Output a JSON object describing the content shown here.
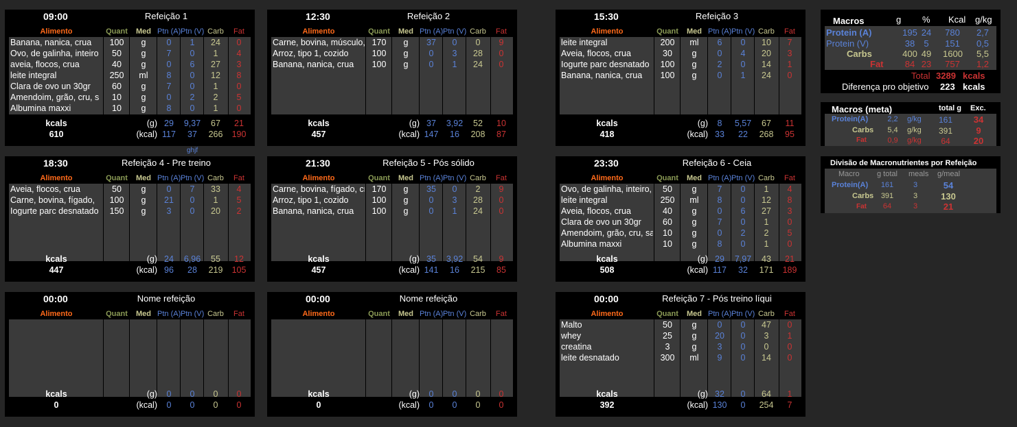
{
  "meal_headers": {
    "alimento": "Alimento",
    "quant": "Quant",
    "med": "Med",
    "ptn_a": "Ptn (A)",
    "ptn_v": "Ptn (V)",
    "carb": "Carb",
    "fat": "Fat",
    "kcals": "kcals",
    "g_unit": "(g)",
    "kcal_unit": "(kcal)"
  },
  "meals": [
    {
      "time": "09:00",
      "name": "Refeição 1",
      "items": [
        {
          "food": "Banana, nanica, crua",
          "qty": "100",
          "unit": "g",
          "pa": "0",
          "pv": "1",
          "carb": "24",
          "fat": "0"
        },
        {
          "food": "Ovo, de galinha, inteiro",
          "qty": "50",
          "unit": "g",
          "pa": "7",
          "pv": "0",
          "carb": "1",
          "fat": "4"
        },
        {
          "food": "aveia, flocos, crua",
          "qty": "40",
          "unit": "g",
          "pa": "0",
          "pv": "6",
          "carb": "27",
          "fat": "3"
        },
        {
          "food": "leite integral",
          "qty": "250",
          "unit": "ml",
          "pa": "8",
          "pv": "0",
          "carb": "12",
          "fat": "8"
        },
        {
          "food": "Clara de ovo un 30gr",
          "qty": "60",
          "unit": "g",
          "pa": "7",
          "pv": "0",
          "carb": "1",
          "fat": "0"
        },
        {
          "food": "Amendoim, grão, cru, s",
          "qty": "10",
          "unit": "g",
          "pa": "0",
          "pv": "2",
          "carb": "2",
          "fat": "5"
        },
        {
          "food": "Albumina maxxi",
          "qty": "10",
          "unit": "g",
          "pa": "8",
          "pv": "0",
          "carb": "1",
          "fat": "0"
        }
      ],
      "kcal_total": "610",
      "g": {
        "pa": "29",
        "pv": "9,37",
        "carb": "67",
        "fat": "21"
      },
      "kcal": {
        "pa": "117",
        "pv": "37",
        "carb": "266",
        "fat": "190"
      }
    },
    {
      "time": "12:30",
      "name": "Refeição 2",
      "items": [
        {
          "food": "Carne, bovina, músculo, sem",
          "qty": "170",
          "unit": "g",
          "pa": "37",
          "pv": "0",
          "carb": "0",
          "fat": "9"
        },
        {
          "food": "Arroz, tipo 1, cozido",
          "qty": "100",
          "unit": "g",
          "pa": "0",
          "pv": "3",
          "carb": "28",
          "fat": "0"
        },
        {
          "food": "Banana, nanica, crua",
          "qty": "100",
          "unit": "g",
          "pa": "0",
          "pv": "1",
          "carb": "24",
          "fat": "0"
        }
      ],
      "kcal_total": "457",
      "g": {
        "pa": "37",
        "pv": "3,92",
        "carb": "52",
        "fat": "10"
      },
      "kcal": {
        "pa": "147",
        "pv": "16",
        "carb": "208",
        "fat": "87"
      }
    },
    {
      "time": "15:30",
      "name": "Refeição 3",
      "items": [
        {
          "food": "leite integral",
          "qty": "200",
          "unit": "ml",
          "pa": "6",
          "pv": "0",
          "carb": "10",
          "fat": "7"
        },
        {
          "food": "Aveia, flocos, crua",
          "qty": "30",
          "unit": "g",
          "pa": "0",
          "pv": "4",
          "carb": "20",
          "fat": "3"
        },
        {
          "food": "Iogurte parc desnatado",
          "qty": "100",
          "unit": "g",
          "pa": "2",
          "pv": "0",
          "carb": "14",
          "fat": "1"
        },
        {
          "food": "Banana, nanica, crua",
          "qty": "100",
          "unit": "g",
          "pa": "0",
          "pv": "1",
          "carb": "24",
          "fat": "0"
        }
      ],
      "kcal_total": "418",
      "g": {
        "pa": "8",
        "pv": "5,57",
        "carb": "67",
        "fat": "11"
      },
      "kcal": {
        "pa": "33",
        "pv": "22",
        "carb": "268",
        "fat": "95"
      }
    },
    {
      "time": "18:30",
      "name": "Refeição 4 - Pre treino",
      "items": [
        {
          "food": "Aveia, flocos, crua",
          "qty": "50",
          "unit": "g",
          "pa": "0",
          "pv": "7",
          "carb": "33",
          "fat": "4"
        },
        {
          "food": "Carne, bovina, fígado,",
          "qty": "100",
          "unit": "g",
          "pa": "21",
          "pv": "0",
          "carb": "1",
          "fat": "5"
        },
        {
          "food": "Iogurte parc desnatado",
          "qty": "150",
          "unit": "g",
          "pa": "3",
          "pv": "0",
          "carb": "20",
          "fat": "2"
        }
      ],
      "kcal_total": "447",
      "g": {
        "pa": "24",
        "pv": "6,96",
        "carb": "55",
        "fat": "12"
      },
      "kcal": {
        "pa": "96",
        "pv": "28",
        "carb": "219",
        "fat": "105"
      }
    },
    {
      "time": "21:30",
      "name": "Refeição 5 - Pós sólido",
      "items": [
        {
          "food": "Carne, bovina, fígado, cru",
          "qty": "170",
          "unit": "g",
          "pa": "35",
          "pv": "0",
          "carb": "2",
          "fat": "9"
        },
        {
          "food": "Arroz, tipo 1, cozido",
          "qty": "100",
          "unit": "g",
          "pa": "0",
          "pv": "3",
          "carb": "28",
          "fat": "0"
        },
        {
          "food": "Banana, nanica, crua",
          "qty": "100",
          "unit": "g",
          "pa": "0",
          "pv": "1",
          "carb": "24",
          "fat": "0"
        }
      ],
      "kcal_total": "457",
      "g": {
        "pa": "35",
        "pv": "3,92",
        "carb": "54",
        "fat": "9"
      },
      "kcal": {
        "pa": "141",
        "pv": "16",
        "carb": "215",
        "fat": "85"
      }
    },
    {
      "time": "23:30",
      "name": "Refeição 6 - Ceia",
      "items": [
        {
          "food": "Ovo, de galinha, inteiro,",
          "qty": "50",
          "unit": "g",
          "pa": "7",
          "pv": "0",
          "carb": "1",
          "fat": "4"
        },
        {
          "food": "leite integral",
          "qty": "250",
          "unit": "ml",
          "pa": "8",
          "pv": "0",
          "carb": "12",
          "fat": "8"
        },
        {
          "food": "Aveia, flocos, crua",
          "qty": "40",
          "unit": "g",
          "pa": "0",
          "pv": "6",
          "carb": "27",
          "fat": "3"
        },
        {
          "food": "Clara de ovo un 30gr",
          "qty": "60",
          "unit": "g",
          "pa": "7",
          "pv": "0",
          "carb": "1",
          "fat": "0"
        },
        {
          "food": "Amendoim, grão, cru, sa",
          "qty": "10",
          "unit": "g",
          "pa": "0",
          "pv": "2",
          "carb": "2",
          "fat": "5"
        },
        {
          "food": "Albumina maxxi",
          "qty": "10",
          "unit": "g",
          "pa": "8",
          "pv": "0",
          "carb": "1",
          "fat": "0"
        }
      ],
      "kcal_total": "508",
      "g": {
        "pa": "29",
        "pv": "7,97",
        "carb": "43",
        "fat": "21"
      },
      "kcal": {
        "pa": "117",
        "pv": "32",
        "carb": "171",
        "fat": "189"
      }
    },
    {
      "time": "00:00",
      "name": "Nome refeição",
      "items": [],
      "kcal_total": "0",
      "g": {
        "pa": "0",
        "pv": "0",
        "carb": "0",
        "fat": "0"
      },
      "kcal": {
        "pa": "0",
        "pv": "0",
        "carb": "0",
        "fat": "0"
      }
    },
    {
      "time": "00:00",
      "name": "Nome refeição",
      "items": [],
      "kcal_total": "0",
      "g": {
        "pa": "0",
        "pv": "0",
        "carb": "0",
        "fat": "0"
      },
      "kcal": {
        "pa": "0",
        "pv": "0",
        "carb": "0",
        "fat": "0"
      }
    },
    {
      "time": "00:00",
      "name": "Refeição 7 - Pós treino líqui",
      "items": [
        {
          "food": "Malto",
          "qty": "50",
          "unit": "g",
          "pa": "0",
          "pv": "0",
          "carb": "47",
          "fat": "0"
        },
        {
          "food": "whey",
          "qty": "25",
          "unit": "g",
          "pa": "20",
          "pv": "0",
          "carb": "3",
          "fat": "1"
        },
        {
          "food": "creatina",
          "qty": "3",
          "unit": "g",
          "pa": "3",
          "pv": "0",
          "carb": "0",
          "fat": "0"
        },
        {
          "food": "leite desnatado",
          "qty": "300",
          "unit": "ml",
          "pa": "9",
          "pv": "0",
          "carb": "14",
          "fat": "0"
        }
      ],
      "kcal_total": "392",
      "g": {
        "pa": "32",
        "pv": "0",
        "carb": "64",
        "fat": "1"
      },
      "kcal": {
        "pa": "130",
        "pv": "0",
        "carb": "254",
        "fat": "7"
      }
    }
  ],
  "stray_text": "ghjf",
  "macros": {
    "title": "Macros",
    "h_g": "g",
    "h_pct": "%",
    "h_kcal": "Kcal",
    "h_gkg": "g/kg",
    "rows": [
      {
        "label": "Protein (A)",
        "g": "195",
        "pct": "24",
        "kcal": "780",
        "gkg": "2,7"
      },
      {
        "label": "Protein (V)",
        "g": "38",
        "pct": "5",
        "kcal": "151",
        "gkg": "0,5"
      },
      {
        "label": "Carbs",
        "g": "400",
        "pct": "49",
        "kcal": "1600",
        "gkg": "5,5"
      },
      {
        "label": "Fat",
        "g": "84",
        "pct": "23",
        "kcal": "757",
        "gkg": "1,2"
      }
    ],
    "total_label": "Total",
    "total_value": "3289",
    "total_unit": "kcals",
    "diff_label": "Diferença pro objetivo",
    "diff_value": "223",
    "diff_unit": "kcals"
  },
  "macros_meta": {
    "title": "Macros (meta)",
    "h_total": "total g",
    "h_exc": "Exc.",
    "rows": [
      {
        "label": "Protein(A)",
        "val": "2,2",
        "unit": "g/kg",
        "total": "161",
        "exc": "34"
      },
      {
        "label": "Carbs",
        "val": "5,4",
        "unit": "g/kg",
        "total": "391",
        "exc": "9"
      },
      {
        "label": "Fat",
        "val": "0,9",
        "unit": "g/kg",
        "total": "64",
        "exc": "20"
      }
    ]
  },
  "division": {
    "title": "Divisão de Macronutrientes por Refeição",
    "h_macro": "Macro",
    "h_total": "g total",
    "h_meals": "meals",
    "h_gmeal": "g/meal",
    "rows": [
      {
        "label": "Protein(A)",
        "total": "161",
        "meals": "3",
        "gmeal": "54"
      },
      {
        "label": "Carbs",
        "total": "391",
        "meals": "3",
        "gmeal": "130"
      },
      {
        "label": "Fat",
        "total": "64",
        "meals": "3",
        "gmeal": "21"
      }
    ]
  },
  "colors": {
    "protein": "#5a82d8",
    "carbs": "#c8c890",
    "fat": "#cc3333",
    "alimento": "#ff6a1a",
    "quant": "#8a9a55"
  }
}
